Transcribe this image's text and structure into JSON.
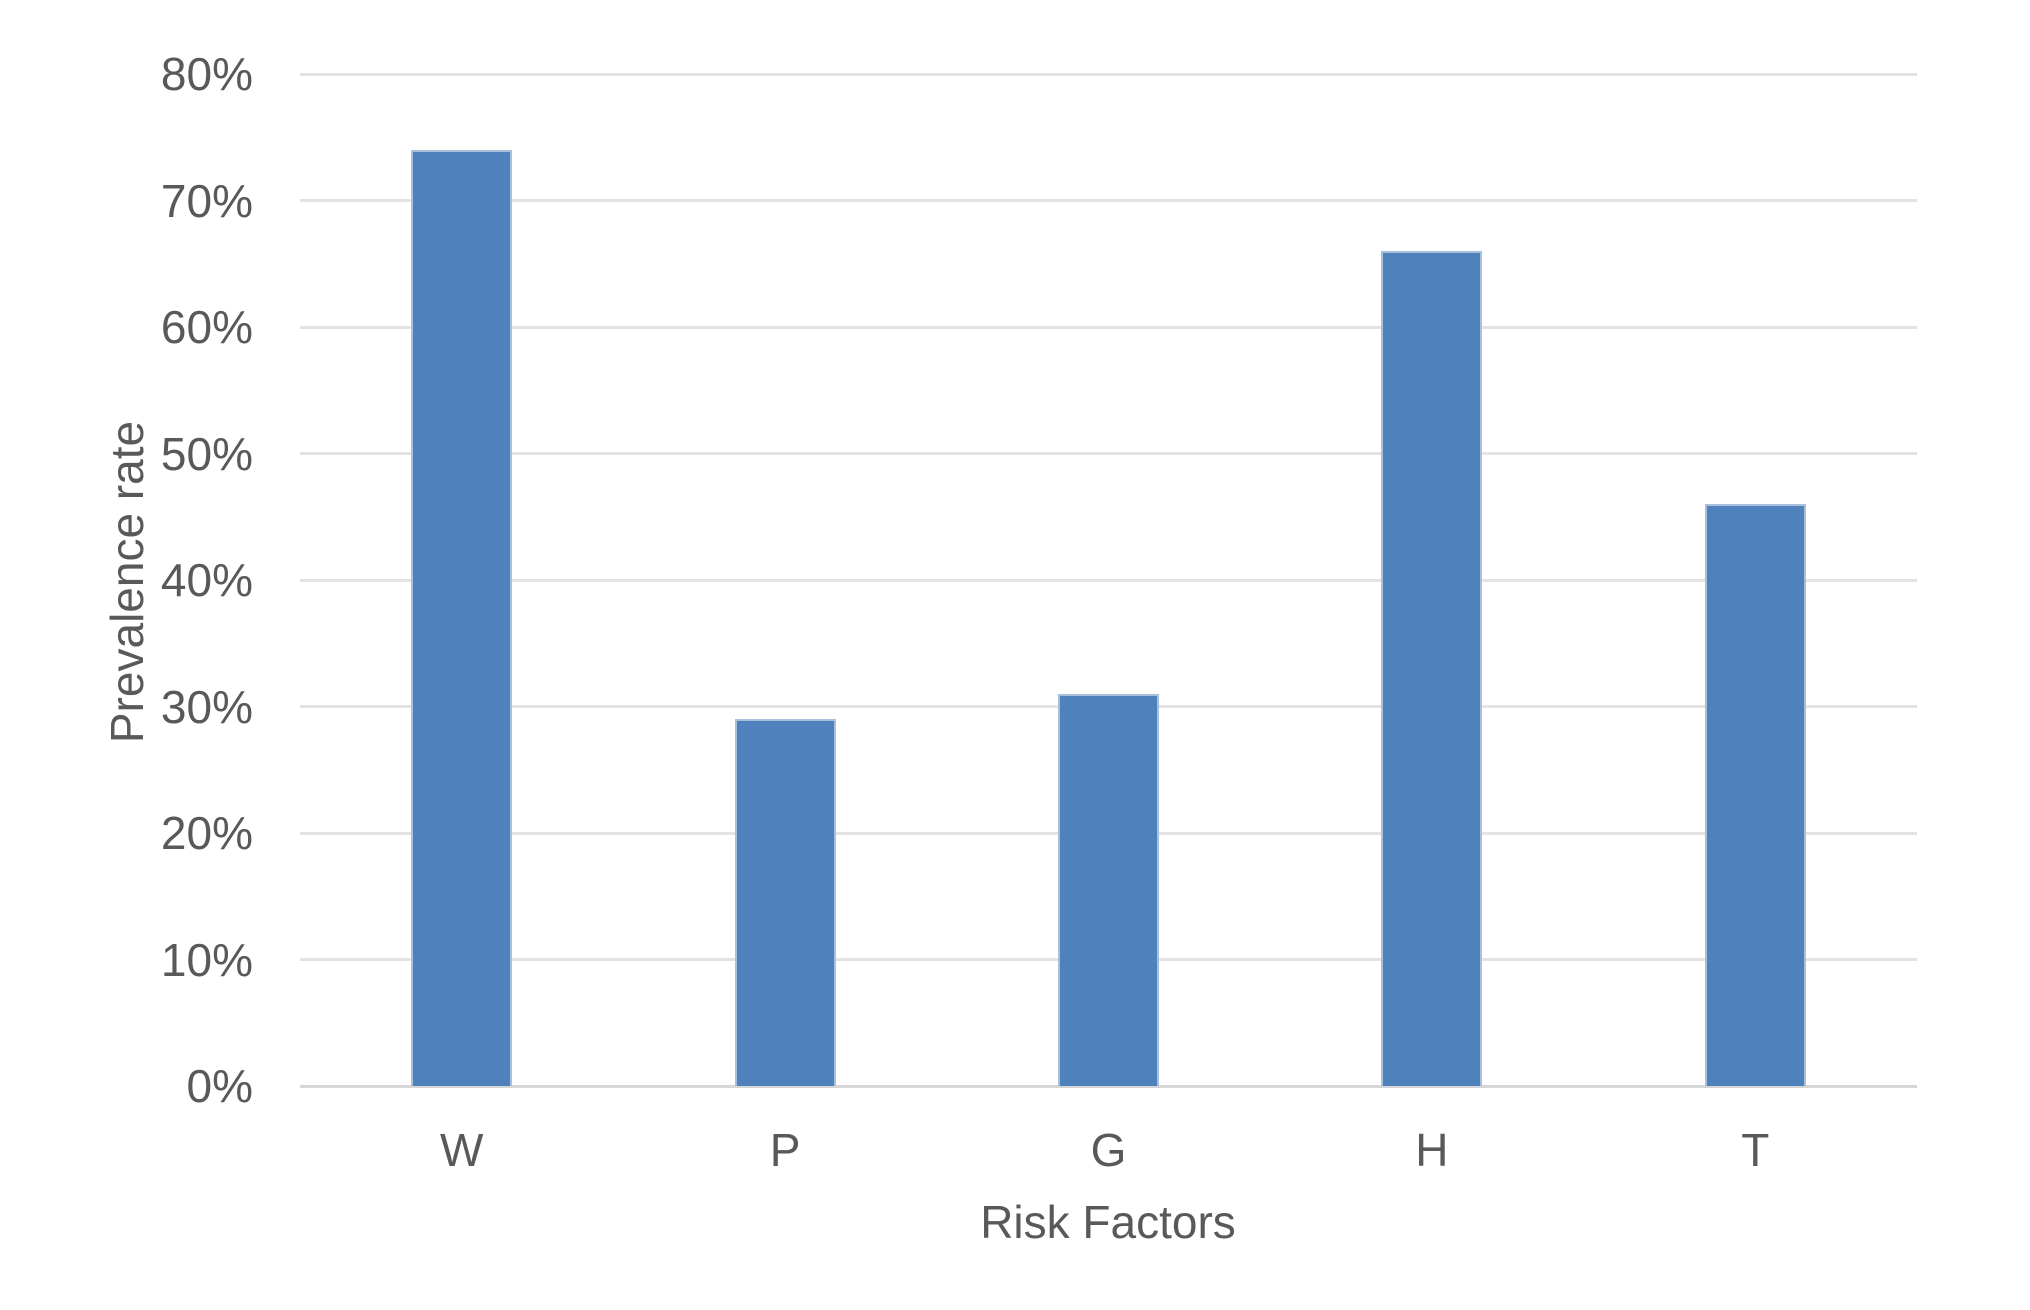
{
  "chart_data": {
    "type": "bar",
    "title": "",
    "categories": [
      "W",
      "P",
      "G",
      "H",
      "T"
    ],
    "values": [
      74,
      29,
      31,
      66,
      46
    ],
    "series": [
      {
        "name": "Prevalence rate",
        "values": [
          74,
          29,
          31,
          66,
          46
        ]
      }
    ],
    "xlabel": "Risk Factors",
    "ylabel": "Prevalence rate",
    "ylim": [
      0,
      80
    ],
    "ytick_step": 10,
    "yticks": [
      "0%",
      "10%",
      "20%",
      "30%",
      "40%",
      "50%",
      "60%",
      "70%",
      "80%"
    ],
    "grid": "horizontal",
    "legend_position": "none",
    "colors": {
      "bar_fill": "#4F81BD",
      "bar_border": "#A9C0DD",
      "gridline": "#E3E3E3",
      "axis_line": "#D6D6D6",
      "label": "#595959",
      "background": "#FFFFFF"
    }
  }
}
